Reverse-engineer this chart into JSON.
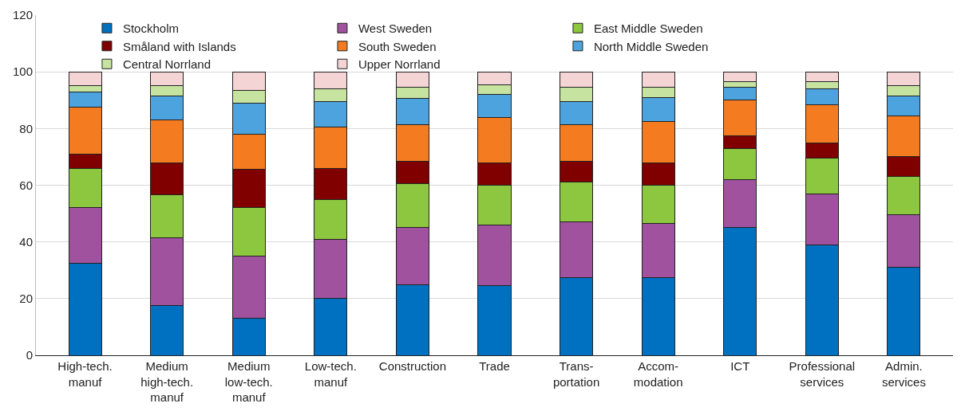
{
  "chart_data": {
    "type": "bar",
    "stacked": true,
    "categories": [
      "High-tech.\nmanuf",
      "Medium\nhigh-tech.\nmanuf",
      "Medium\nlow-tech.\nmanuf",
      "Low-tech.\nmanuf",
      "Construction",
      "Trade",
      "Trans-\nportation",
      "Accom-\nmodation",
      "ICT",
      "Professional\nservices",
      "Admin.\nservices"
    ],
    "series": [
      {
        "name": "Stockholm",
        "color": "#0070c0",
        "values": [
          32.5,
          17.5,
          13,
          20,
          25,
          24.5,
          27.5,
          27.5,
          45,
          39,
          31
        ]
      },
      {
        "name": "West Sweden",
        "color": "#a0529e",
        "values": [
          19.5,
          24,
          22,
          21,
          20,
          21.5,
          19.5,
          19,
          17,
          18,
          18.5
        ]
      },
      {
        "name": "East Middle Sweden",
        "color": "#8dc63f",
        "values": [
          14,
          15,
          17,
          14,
          15.5,
          14,
          14,
          13.5,
          11,
          12.5,
          13.5
        ]
      },
      {
        "name": "Småland with Islands",
        "color": "#800000",
        "values": [
          5,
          11.5,
          13.5,
          11,
          8,
          8,
          7.5,
          8,
          4.5,
          5.5,
          7
        ]
      },
      {
        "name": "South Sweden",
        "color": "#f47b20",
        "values": [
          16.5,
          15,
          12.5,
          14.5,
          13,
          16,
          13,
          14.5,
          12.5,
          13.5,
          14.5
        ]
      },
      {
        "name": "North Middle Sweden",
        "color": "#4da3de",
        "values": [
          5.5,
          8.5,
          11,
          9,
          9,
          8,
          8,
          8.5,
          4.5,
          5.5,
          7
        ]
      },
      {
        "name": "Central Norrland",
        "color": "#c6e4a0",
        "values": [
          2,
          3.5,
          4.5,
          4.5,
          4,
          3.5,
          5,
          3.5,
          2,
          2.5,
          3.5
        ]
      },
      {
        "name": "Upper Norrland",
        "color": "#f4d4d4",
        "values": [
          5,
          5,
          6.5,
          6,
          5.5,
          4.5,
          5.5,
          5.5,
          3.5,
          3.5,
          5
        ]
      }
    ],
    "ylim": [
      0,
      120
    ],
    "yticks": [
      0,
      20,
      40,
      60,
      80,
      100,
      120
    ],
    "grid": "y",
    "legend": "top"
  }
}
